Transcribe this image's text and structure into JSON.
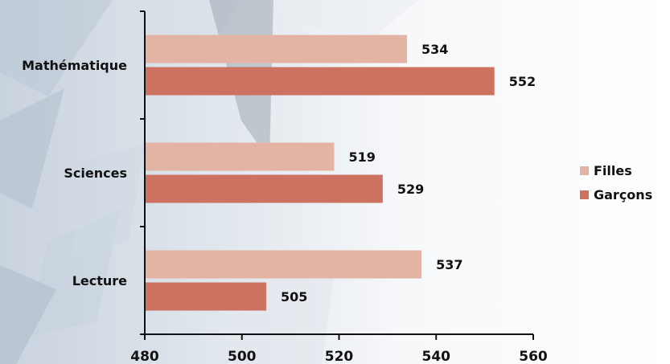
{
  "chart_data": {
    "type": "bar",
    "orientation": "horizontal",
    "categories": [
      "Mathématique",
      "Sciences",
      "Lecture"
    ],
    "series": [
      {
        "name": "Filles",
        "values": [
          534,
          519,
          537
        ],
        "color": "#E3B3A3"
      },
      {
        "name": "Garçons",
        "values": [
          552,
          529,
          505
        ],
        "color": "#CD7160"
      }
    ],
    "xlim": [
      480,
      560
    ],
    "xticks": [
      480,
      500,
      520,
      540,
      560
    ],
    "title": "",
    "xlabel": "",
    "ylabel": "",
    "legend_position": "right",
    "grid": false
  }
}
